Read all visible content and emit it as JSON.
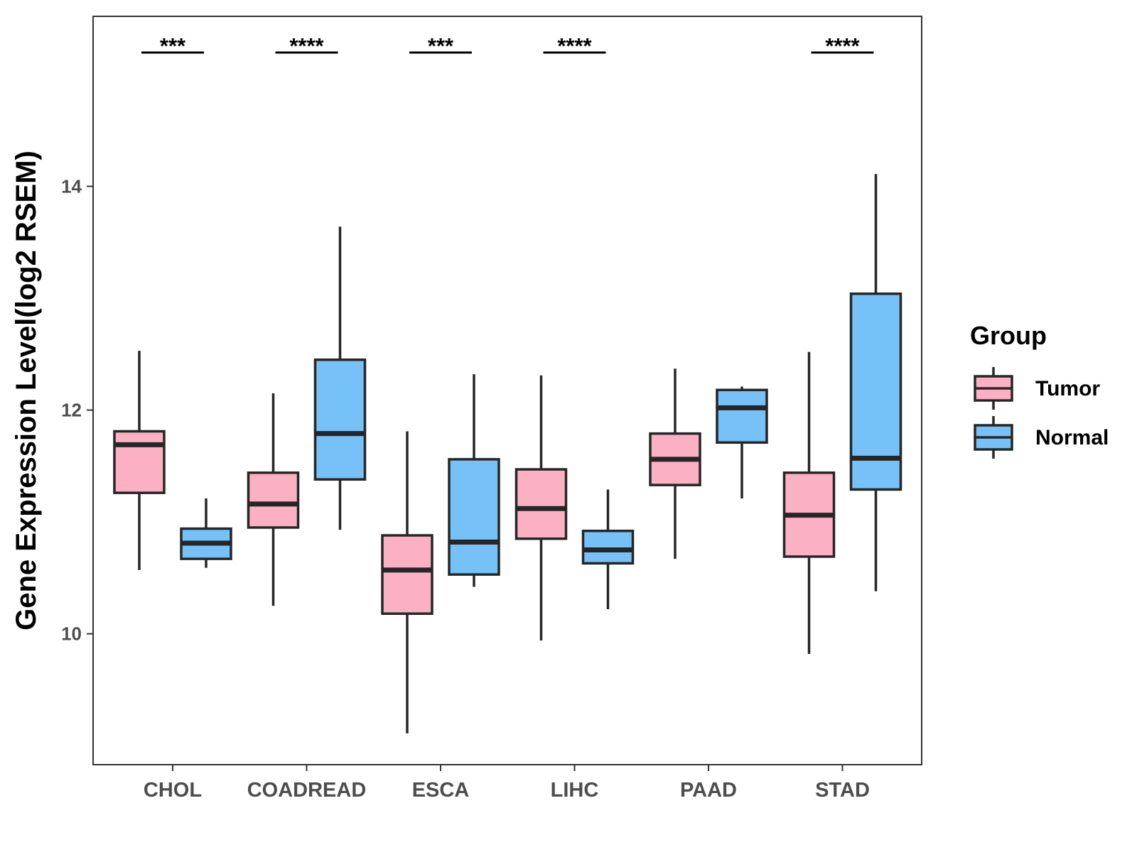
{
  "chart_data": {
    "type": "boxplot",
    "title": "",
    "xlabel": "",
    "ylabel": "Gene Expression Level(log2 RSEM)",
    "ylim": [
      8.83,
      15.52
    ],
    "yticks": [
      10,
      12,
      14
    ],
    "categories": [
      "CHOL",
      "COADREAD",
      "ESCA",
      "LIHC",
      "PAAD",
      "STAD"
    ],
    "legend": {
      "title": "Group",
      "position": "right",
      "items": [
        {
          "label": "Tumor",
          "color": "#FBB1C3"
        },
        {
          "label": "Normal",
          "color": "#76C1F8"
        }
      ]
    },
    "series": [
      {
        "name": "Tumor",
        "color": "#FBB1C3",
        "boxes": [
          {
            "min": 10.57,
            "q1": 11.26,
            "median": 11.69,
            "q3": 11.81,
            "max": 12.53
          },
          {
            "min": 10.25,
            "q1": 10.95,
            "median": 11.16,
            "q3": 11.44,
            "max": 12.15
          },
          {
            "min": 9.11,
            "q1": 10.18,
            "median": 10.57,
            "q3": 10.88,
            "max": 11.81
          },
          {
            "min": 9.94,
            "q1": 10.85,
            "median": 11.12,
            "q3": 11.47,
            "max": 12.31
          },
          {
            "min": 10.67,
            "q1": 11.33,
            "median": 11.56,
            "q3": 11.79,
            "max": 12.37
          },
          {
            "min": 9.82,
            "q1": 10.69,
            "median": 11.06,
            "q3": 11.44,
            "max": 12.52
          }
        ]
      },
      {
        "name": "Normal",
        "color": "#76C1F8",
        "boxes": [
          {
            "min": 10.59,
            "q1": 10.67,
            "median": 10.81,
            "q3": 10.94,
            "max": 11.21
          },
          {
            "min": 10.93,
            "q1": 11.38,
            "median": 11.79,
            "q3": 12.45,
            "max": 13.64
          },
          {
            "min": 10.42,
            "q1": 10.53,
            "median": 10.82,
            "q3": 11.56,
            "max": 12.32
          },
          {
            "min": 10.22,
            "q1": 10.63,
            "median": 10.75,
            "q3": 10.92,
            "max": 11.29
          },
          {
            "min": 11.21,
            "q1": 11.71,
            "median": 12.02,
            "q3": 12.18,
            "max": 12.21
          },
          {
            "min": 10.38,
            "q1": 11.29,
            "median": 11.57,
            "q3": 13.04,
            "max": 14.11
          }
        ]
      }
    ],
    "significance": [
      "***",
      "****",
      "***",
      "****",
      "",
      "****"
    ]
  }
}
